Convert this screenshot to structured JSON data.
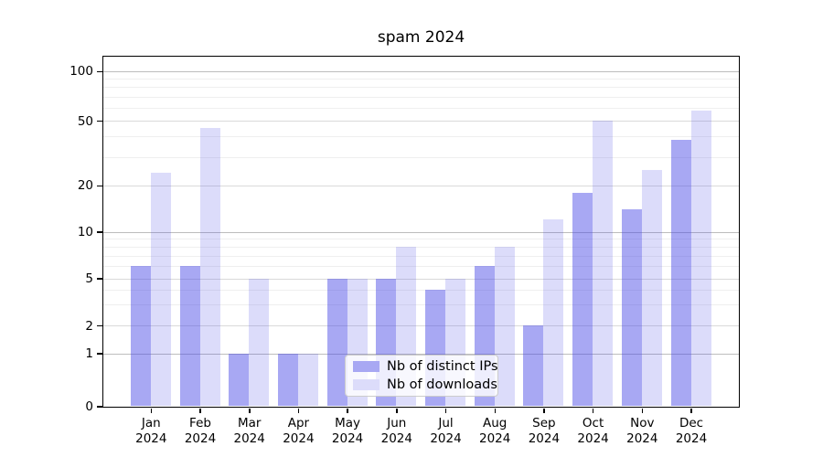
{
  "chart_data": {
    "type": "bar",
    "title": "spam 2024",
    "categories": [
      "Jan 2024",
      "Feb 2024",
      "Mar 2024",
      "Apr 2024",
      "May 2024",
      "Jun 2024",
      "Jul 2024",
      "Aug 2024",
      "Sep 2024",
      "Oct 2024",
      "Nov 2024",
      "Dec 2024"
    ],
    "series": [
      {
        "name": "Nb of distinct IPs",
        "color": "#a8a8f3",
        "fill": "rgba(70,70,230,0.47)",
        "values": [
          6,
          6,
          1,
          1,
          5,
          5,
          4,
          6,
          2,
          18,
          14,
          38
        ]
      },
      {
        "name": "Nb of downloads",
        "color": "#dcdcfa",
        "fill": "rgba(70,70,230,0.19)",
        "values": [
          24,
          45,
          5,
          1,
          5,
          8,
          5,
          8,
          12,
          50,
          25,
          58
        ]
      }
    ],
    "y_axis": {
      "scale": "symlog",
      "ticks": [
        0,
        1,
        2,
        5,
        10,
        20,
        50,
        100
      ],
      "tick_labels": [
        "0",
        "1",
        "2",
        "5",
        "10",
        "20",
        "50",
        "100"
      ],
      "minor_gridlines": [
        3,
        4,
        6,
        7,
        8,
        9,
        30,
        40,
        60,
        70,
        80,
        90
      ],
      "ylim": [
        0,
        130
      ]
    },
    "legend_location": "lower center",
    "grid": true
  }
}
